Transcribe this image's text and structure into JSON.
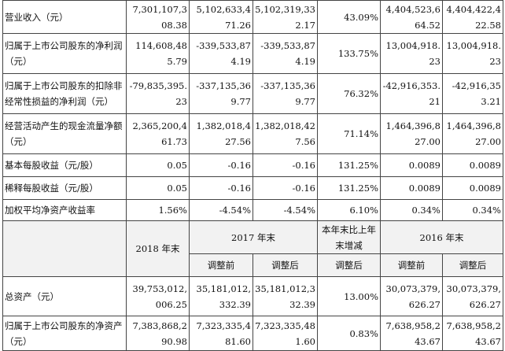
{
  "rows_top": [
    {
      "label": "营业收入（元）",
      "c1": "7,301,107,308.38",
      "c2": "5,102,633,471.26",
      "c3": "5,102,319,332.17",
      "c4": "43.09%",
      "c5": "4,404,523,664.52",
      "c6": "4,404,422,422.58"
    },
    {
      "label": "归属于上市公司股东的净利润（元）",
      "c1": "114,608,485.79",
      "c2": "-339,533,874.19",
      "c3": "-339,533,874.19",
      "c4": "133.75%",
      "c5": "13,004,918.23",
      "c6": "13,004,918.23"
    },
    {
      "label": "归属于上市公司股东的扣除非经常性损益的净利润（元）",
      "c1": "-79,835,395.23",
      "c2": "-337,135,369.77",
      "c3": "-337,135,369.77",
      "c4": "76.32%",
      "c5": "-42,916,353.21",
      "c6": "-42,916,353.21"
    },
    {
      "label": "经营活动产生的现金流量净额（元）",
      "c1": "2,365,200,461.73",
      "c2": "1,382,018,427.56",
      "c3": "1,382,018,427.56",
      "c4": "71.14%",
      "c5": "1,464,396,827.00",
      "c6": "1,464,396,827.00"
    },
    {
      "label": "基本每股收益（元/股）",
      "c1": "0.05",
      "c2": "-0.16",
      "c3": "-0.16",
      "c4": "131.25%",
      "c5": "0.0089",
      "c6": "0.0089"
    },
    {
      "label": "稀释每股收益（元/股）",
      "c1": "0.05",
      "c2": "-0.16",
      "c3": "-0.16",
      "c4": "131.25%",
      "c5": "0.0089",
      "c6": "0.0089"
    },
    {
      "label": "加权平均净资产收益率",
      "c1": "1.56%",
      "c2": "-4.54%",
      "c3": "-4.54%",
      "c4": "6.10%",
      "c5": "0.34%",
      "c6": "0.34%"
    }
  ],
  "header": {
    "col_2018": "2018 年末",
    "col_2017": "2017 年末",
    "col_change": "本年末比上年末增减",
    "col_2016": "2016 年末",
    "before": "调整前",
    "after": "调整后",
    "change_after": "调整后",
    "before_2016": "调整前",
    "after_2016": "调整后"
  },
  "rows_bottom": [
    {
      "label": "总资产（元）",
      "c1": "39,753,012,006.25",
      "c2": "35,181,012,332.39",
      "c3": "35,181,012,332.39",
      "c4": "13.00%",
      "c5": "30,073,379,626.27",
      "c6": "30,073,379,626.27"
    },
    {
      "label": "归属于上市公司股东的净资产（元）",
      "c1": "7,383,868,290.98",
      "c2": "7,323,335,481.60",
      "c3": "7,323,335,481.60",
      "c4": "0.83%",
      "c5": "7,638,958,243.67",
      "c6": "7,638,958,243.67"
    }
  ]
}
